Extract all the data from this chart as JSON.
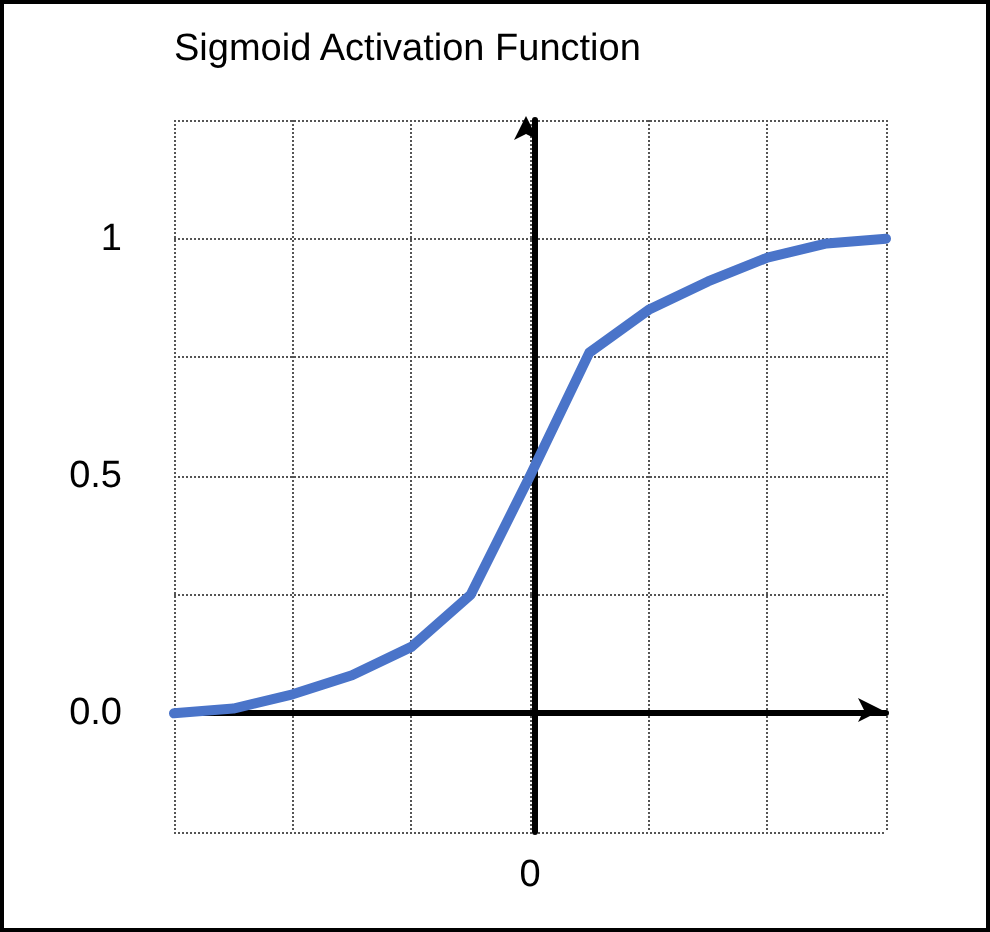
{
  "chart_data": {
    "type": "line",
    "title": "Sigmoid Activation Function",
    "categories": [
      null,
      null,
      null,
      null,
      null,
      null,
      "0",
      null,
      null,
      null,
      null,
      null,
      null
    ],
    "series": [
      {
        "color": "#4a74c9",
        "values": [
          0,
          0.01,
          0.04,
          0.08,
          0.14,
          0.25,
          0.5,
          0.76,
          0.85,
          0.91,
          0.96,
          0.99,
          1.0
        ]
      }
    ],
    "ylim": [
      -0.25,
      1.25
    ],
    "yticks": [
      {
        "value": -0.25,
        "label": null
      },
      {
        "value": 0,
        "label": "0.0"
      },
      {
        "value": 0.25,
        "label": null
      },
      0.5,
      {
        "value": 0.75,
        "label": null
      },
      1,
      {
        "value": 1.25,
        "label": null
      }
    ],
    "grid": true,
    "marker": "none",
    "line_style": "solid"
  }
}
